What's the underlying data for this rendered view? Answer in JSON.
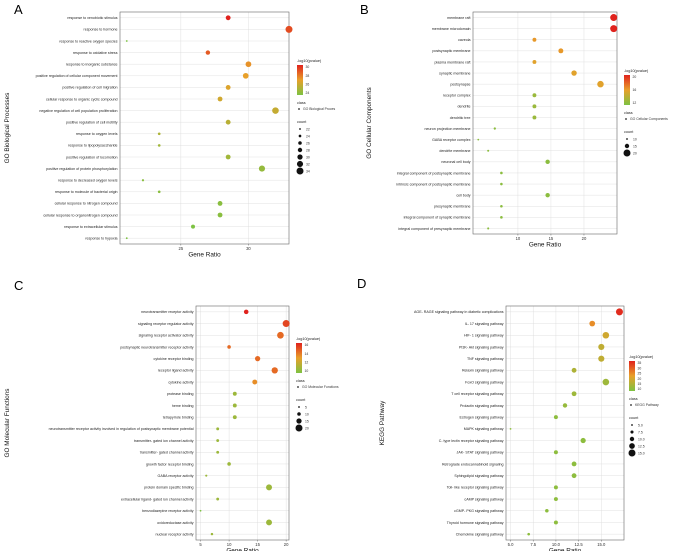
{
  "colors": {
    "low": "#7dc242",
    "mid": "#e8a02a",
    "high": "#e0221d",
    "frame": "#666666",
    "grid": "#d9d9d9"
  },
  "chart_data": [
    {
      "panel": "A",
      "type": "scatter",
      "xlabel": "Gene Ratio",
      "ylabel": "GO Biological Processes",
      "xlim": [
        20.5,
        33
      ],
      "xticks": [
        25,
        30
      ],
      "categories": [
        "response to xenobiotic stimulus",
        "response to hormone",
        "response to reactive oxygen species",
        "response to oxidative stress",
        "response to inorganic substance",
        "positive regulation of cellular component movement",
        "positive regulation of cell migration",
        "cellular response to organic cyclic compound",
        "negative regulation of cell population proliferation",
        "positive regulation of cell motility",
        "response to oxygen levels",
        "response to lipopolysaccharide",
        "positive regulation of locomotion",
        "positive regulation of protein phosphorylation",
        "response to decreased oxygen levels",
        "response to molecule of bacterial origin",
        "cellular response to nitrogen compound",
        "cellular response to organonitrogen compound",
        "response to extracellular stimulus",
        "response to hypoxia"
      ],
      "x": [
        28.5,
        33.0,
        21.0,
        27.0,
        30.0,
        29.8,
        28.5,
        27.9,
        32.0,
        28.5,
        23.4,
        23.4,
        28.5,
        31.0,
        22.2,
        23.4,
        27.9,
        27.9,
        25.9,
        21.0
      ],
      "count": [
        28,
        33,
        21,
        27,
        30,
        30,
        28,
        28,
        32,
        28,
        23,
        23,
        28,
        31,
        22,
        23,
        28,
        28,
        26,
        21
      ],
      "neglog10p": [
        30,
        27,
        12,
        26,
        22,
        21,
        20,
        19,
        18,
        17,
        16,
        15,
        15,
        14,
        13,
        13,
        13,
        13,
        12,
        12
      ],
      "color_legend": {
        "title": "-log10(pvalue)",
        "ticks": [
          "30",
          "28",
          "26",
          "24"
        ],
        "range": [
          12,
          30
        ]
      },
      "class_legend": {
        "title": "class",
        "entry": "GO Biological Proces"
      },
      "size_legend": {
        "title": "count",
        "labels": [
          "22",
          "24",
          "26",
          "28",
          "30",
          "32",
          "34"
        ]
      }
    },
    {
      "panel": "B",
      "type": "scatter",
      "xlabel": "Gene Ratio",
      "ylabel": "GO Cellular Components",
      "xlim": [
        3.2,
        25
      ],
      "xticks": [
        10,
        15,
        20
      ],
      "categories": [
        "membrane raft",
        "membrane microdomain",
        "caveola",
        "postsynaptic membrane",
        "plasma membrane raft",
        "synaptic membrane",
        "postsynapse",
        "receptor complex",
        "dendrite",
        "dendritic tree",
        "neuron projection membrane",
        "GABA receptor complex",
        "dendrite membrane",
        "neuronal cell body",
        "integral component of postsynaptic membrane",
        "intrinsic component of postsynaptic membrane",
        "cell body",
        "presynaptic membrane",
        "integral component of synaptic membrane",
        "integral component of presynaptic membrane"
      ],
      "x": [
        24.5,
        24.5,
        12.5,
        16.5,
        12.5,
        18.5,
        22.5,
        12.5,
        12.5,
        12.5,
        6.5,
        4.0,
        5.5,
        14.5,
        7.5,
        7.5,
        14.5,
        7.5,
        7.5,
        5.5
      ],
      "count": [
        24,
        24,
        12,
        16,
        12,
        18,
        22,
        12,
        12,
        12,
        6,
        4,
        5,
        14,
        7,
        7,
        14,
        7,
        7,
        5
      ],
      "neglog10p": [
        24,
        24,
        17,
        17,
        16,
        16,
        16,
        11,
        11,
        11,
        10,
        10,
        10,
        10,
        10,
        10,
        10,
        10,
        10,
        10
      ],
      "color_legend": {
        "title": "-log10(pvalue)",
        "ticks": [
          "20",
          "16",
          "12"
        ],
        "range": [
          9,
          24
        ]
      },
      "class_legend": {
        "title": "class",
        "entry": "GO Cellular Components"
      },
      "size_legend": {
        "title": "count",
        "labels": [
          "10",
          "15",
          "20"
        ]
      }
    },
    {
      "panel": "C",
      "type": "scatter",
      "xlabel": "Gene Ratio",
      "ylabel": "GO Molecular Functions",
      "xlim": [
        4.2,
        20.5
      ],
      "xticks": [
        5,
        10,
        15,
        20
      ],
      "categories": [
        "neurotransmitter receptor activity",
        "signaling receptor regulator activity",
        "signaling receptor activator activity",
        "postsynaptic neurotransmitter receptor activity",
        "cytokine receptor binding",
        "receptor ligand activity",
        "cytokine activity",
        "protease binding",
        "heme binding",
        "tetrapyrrole binding",
        "neurotransmitter receptor activity involved in regulation of postsynaptic membrane potential",
        "transmitter- gated ion channel activity",
        "transmitter- gated channel activity",
        "growth factor receptor binding",
        "GABA receptor activity",
        "protein domain specific binding",
        "extracellular ligand- gated ion channel activity",
        "benzodiazepine receptor activity",
        "oxidoreductase activity",
        "nuclear receptor activity"
      ],
      "x": [
        13.0,
        20.0,
        19.0,
        10.0,
        15.0,
        18.0,
        14.5,
        11.0,
        11.0,
        11.0,
        8.0,
        8.0,
        8.0,
        10.0,
        6.0,
        17.0,
        8.0,
        5.0,
        17.0,
        7.0
      ],
      "count": [
        13,
        20,
        19,
        10,
        15,
        18,
        14,
        11,
        11,
        11,
        8,
        8,
        8,
        10,
        6,
        17,
        8,
        5,
        17,
        7
      ],
      "neglog10p": [
        16,
        15,
        14,
        14,
        14,
        14,
        13,
        10,
        10,
        10,
        10,
        10,
        10,
        10,
        10,
        10,
        10,
        9,
        10,
        10
      ],
      "color_legend": {
        "title": "-log10(pvalue)",
        "ticks": [
          "16",
          "14",
          "12",
          "10"
        ],
        "range": [
          9,
          16
        ]
      },
      "class_legend": {
        "title": "class",
        "entry": "GO Molecular Functions"
      },
      "size_legend": {
        "title": "count",
        "labels": [
          "5",
          "10",
          "15",
          "20"
        ]
      }
    },
    {
      "panel": "D",
      "type": "scatter",
      "xlabel": "Gene Ratio",
      "ylabel": "KEGG Pathway",
      "xlim": [
        4.5,
        17.5
      ],
      "xticks": [
        "5.0",
        "7.5",
        "10.0",
        "12.5",
        "15.0"
      ],
      "xtick_values": [
        5.0,
        7.5,
        10.0,
        12.5,
        15.0
      ],
      "categories": [
        "AGE- RAGE signaling pathway in diabetic complications",
        "IL- 17 signaling pathway",
        "HIF- 1 signaling pathway",
        "PI3K- Akt signaling pathway",
        "TNF signaling pathway",
        "Relaxin signaling pathway",
        "FoxO signaling pathway",
        "T cell receptor signaling pathway",
        "Prolactin signaling pathway",
        "Estrogen signaling pathway",
        "MAPK signaling pathway",
        "C- type lectin receptor signaling pathway",
        "JAK- STAT signaling pathway",
        "Retrograde endocannabinoid signaling",
        "Sphingolipid signaling pathway",
        "Toll- like receptor signaling pathway",
        "cAMP signaling pathway",
        "cGMP- PKG signaling pathway",
        "Thyroid hormone signaling pathway",
        "Chemokine signaling pathway"
      ],
      "x": [
        17.0,
        14.0,
        15.5,
        15.0,
        15.0,
        12.0,
        15.5,
        12.0,
        11.0,
        10.0,
        5.0,
        13.0,
        10.0,
        12.0,
        12.0,
        10.0,
        10.0,
        9.0,
        10.0,
        7.0
      ],
      "count": [
        17,
        14,
        16,
        15,
        15,
        12,
        16,
        12,
        11,
        10,
        5,
        13,
        10,
        12,
        12,
        10,
        10,
        9,
        10,
        7
      ],
      "neglog10p": [
        35,
        25,
        20,
        18,
        18,
        16,
        14,
        14,
        13,
        12,
        12,
        12,
        12,
        12,
        12,
        12,
        12,
        12,
        12,
        12
      ],
      "color_legend": {
        "title": "-log10(pvalue)",
        "ticks": [
          "35",
          "30",
          "25",
          "20",
          "15",
          "10"
        ],
        "range": [
          10,
          36
        ]
      },
      "class_legend": {
        "title": "class",
        "entry": "KEGG Pathway"
      },
      "size_legend": {
        "title": "count",
        "labels": [
          "5.0",
          "7.5",
          "10.0",
          "12.5",
          "15.0"
        ]
      }
    }
  ]
}
